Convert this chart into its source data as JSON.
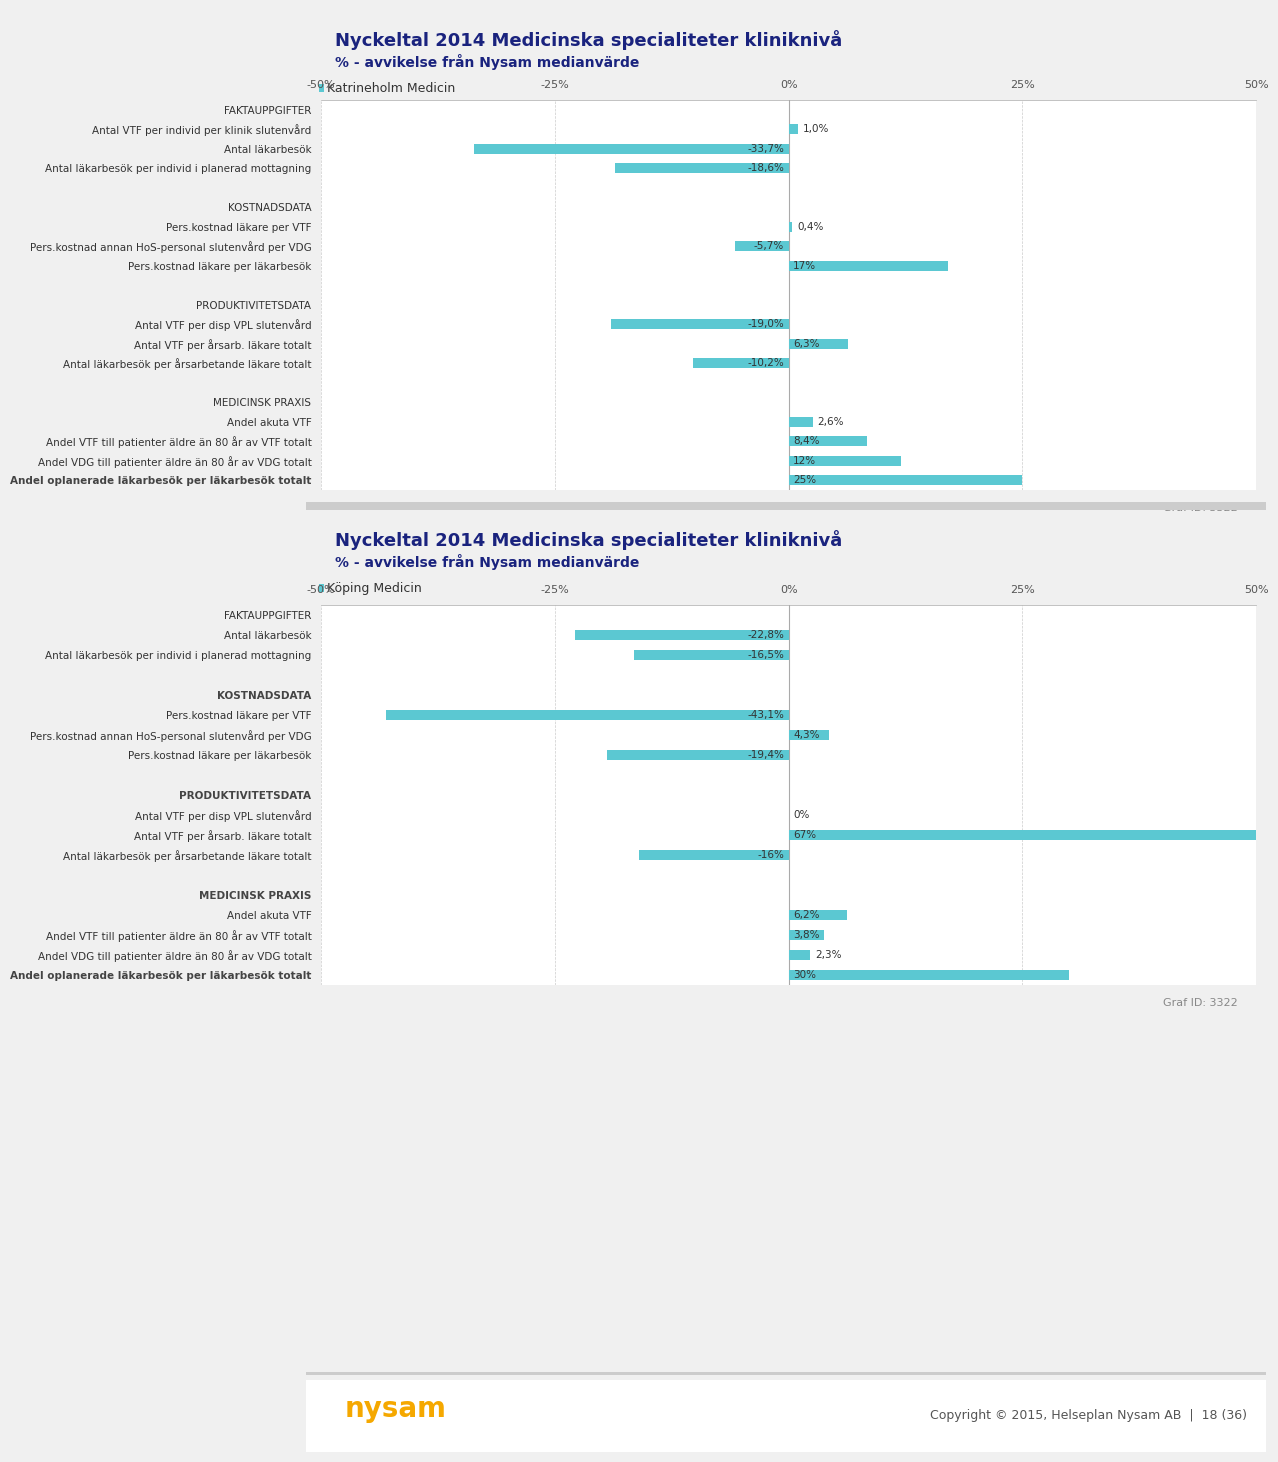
{
  "title": "Nyckeltal 2014 Medicinska specialiteter kliniknivå",
  "subtitle": "% - avvikelse från Nysam medianvärde",
  "background_color": "#f0f0f0",
  "chart_bg": "#ffffff",
  "bar_color": "#5bc8d2",
  "title_color": "#1a237e",
  "label_color": "#333333",
  "header_color": "#333333",
  "xlim": [
    -50,
    50
  ],
  "xticks": [
    -50,
    -25,
    0,
    25,
    50
  ],
  "xtick_labels": [
    "-50%",
    "-25%",
    "0%",
    "25%",
    "50%"
  ],
  "panel1": {
    "legend_color": "#5bc8d2",
    "legend_label": "Katrineholm Medicin",
    "categories": [
      "FAKTAUPPGIFTER",
      "Antal VTF per individ per klinik slutenvård",
      "Antal läkarbesök",
      "Antal läkarbesök per individ i planerad mottagning",
      "",
      "KOSTNADSDATA",
      "Pers.kostnad läkare per VTF",
      "Pers.kostnad annan HoS-personal slutenvård per VDG",
      "Pers.kostnad läkare per läkarbesök",
      "",
      "PRODUKTIVITETSDATA",
      "Antal VTF per disp VPL slutenvård",
      "Antal VTF per årsarb. läkare totalt",
      "Antal läkarbesök per årsarbetande läkare totalt",
      "",
      "MEDICINSK PRAXIS",
      "Andel akuta VTF",
      "Andel VTF till patienter äldre än 80 år av VTF totalt",
      "Andel VDG till patienter äldre än 80 år av VDG totalt",
      "Andel oplanerade läkarbesök per läkarbesök totalt"
    ],
    "values": [
      null,
      1.0,
      -33.7,
      -18.6,
      null,
      null,
      0.4,
      -5.7,
      17.0,
      null,
      null,
      -19.0,
      6.3,
      -10.2,
      null,
      null,
      2.6,
      8.4,
      12.0,
      25.0
    ],
    "value_labels": [
      "",
      "1,0%",
      "-33,7%",
      "-18,6%",
      "",
      "",
      "0,4%",
      "-5,7%",
      "17%",
      "",
      "",
      "-19,0%",
      "6,3%",
      "-10,2%",
      "",
      "",
      "2,6%",
      "8,4%",
      "12%",
      "25%"
    ],
    "is_header": [
      true,
      false,
      false,
      false,
      false,
      true,
      false,
      false,
      false,
      false,
      true,
      false,
      false,
      false,
      false,
      true,
      false,
      false,
      false,
      false
    ],
    "graf_id": "Graf ID: 3322"
  },
  "panel2": {
    "legend_color": "#5bc8d2",
    "legend_label": "Köping Medicin",
    "categories": [
      "FAKTAUPPGIFTER",
      "Antal läkarbesök",
      "Antal läkarbesök per individ i planerad mottagning",
      "",
      "KOSTNADSDATA",
      "Pers.kostnad läkare per VTF",
      "Pers.kostnad annan HoS-personal slutenvård per VDG",
      "Pers.kostnad läkare per läkarbesök",
      "",
      "PRODUKTIVITETSDATA",
      "Antal VTF per disp VPL slutenvård",
      "Antal VTF per årsarb. läkare totalt",
      "Antal läkarbesök per årsarbetande läkare totalt",
      "",
      "MEDICINSK PRAXIS",
      "Andel akuta VTF",
      "Andel VTF till patienter äldre än 80 år av VTF totalt",
      "Andel VDG till patienter äldre än 80 år av VDG totalt",
      "Andel oplanerade läkarbesök per läkarbesök totalt"
    ],
    "values": [
      null,
      -22.8,
      -16.5,
      null,
      null,
      -43.1,
      4.3,
      -19.4,
      null,
      null,
      0.0,
      67.0,
      -16.0,
      null,
      null,
      6.2,
      3.8,
      2.3,
      30.0
    ],
    "value_labels": [
      "",
      "-22,8%",
      "-16,5%",
      "",
      "",
      "-43,1%",
      "4,3%",
      "-19,4%",
      "",
      "",
      "0%",
      "67%",
      "-16%",
      "",
      "",
      "6,2%",
      "3,8%",
      "2,3%",
      "30%"
    ],
    "is_header": [
      true,
      false,
      false,
      false,
      true,
      false,
      false,
      false,
      false,
      true,
      false,
      false,
      false,
      false,
      true,
      false,
      false,
      false,
      false
    ],
    "graf_id": "Graf ID: 3322"
  },
  "footer_text": "Copyright © 2015, Helseplan Nysam AB  |  18 (36)",
  "nysam_color": "#f5a800"
}
